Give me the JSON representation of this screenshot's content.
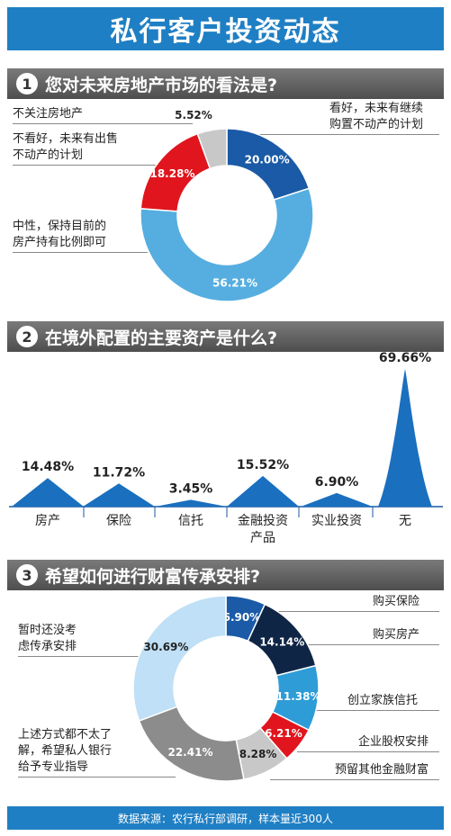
{
  "title": "私行客户投资动态",
  "footer": "数据来源：农行私行部调研，样本量近300人",
  "sections": [
    {
      "num": "1",
      "question": "您对未来房地产市场的看法是?"
    },
    {
      "num": "2",
      "question": "在境外配置的主要资产是什么?"
    },
    {
      "num": "3",
      "question": "希望如何进行财富传承安排?"
    }
  ],
  "colors": {
    "banner": "#1f7fc4",
    "dark_blue": "#1a5aa6",
    "light_blue": "#56aee0",
    "red": "#e0151d",
    "gray": "#c8c8c8",
    "navy": "#0f2546",
    "teal_blue": "#2e9cd6",
    "pale_blue": "#bfe0f6",
    "dark_gray": "#8c8c8c"
  },
  "chart_data": [
    {
      "type": "pie",
      "slices": [
        {
          "label": "看好，未来有继续购置不动产的计划",
          "value": 20.0,
          "value_label": "20.00%",
          "color": "#1a5aa6"
        },
        {
          "label": "中性，保持目前的房产持有比例即可",
          "value": 56.21,
          "value_label": "56.21%",
          "color": "#56aee0"
        },
        {
          "label": "不看好，未来有出售不动产的计划",
          "value": 18.28,
          "value_label": "18.28%",
          "color": "#e0151d"
        },
        {
          "label": "不关注房地产",
          "value": 5.52,
          "value_label": "5.52%",
          "color": "#c8c8c8"
        }
      ],
      "labels_display": {
        "right": "看好，未来有继续",
        "right2": "购置不动产的计划",
        "left_top": "不关注房地产",
        "left_mid1": "不看好，未来有出售",
        "left_mid2": "不动产的计划",
        "left_bot1": "中性，保持目前的",
        "left_bot2": "房产持有比例即可"
      }
    },
    {
      "type": "area",
      "categories": [
        "房产",
        "保险",
        "信托",
        "金融投资产品",
        "实业投资",
        "无"
      ],
      "category_lines": [
        [
          "房产"
        ],
        [
          "保险"
        ],
        [
          "信托"
        ],
        [
          "金融投资",
          "产品"
        ],
        [
          "实业投资"
        ],
        [
          "无"
        ]
      ],
      "values": [
        14.48,
        11.72,
        3.45,
        15.52,
        6.9,
        69.66
      ],
      "value_labels": [
        "14.48%",
        "11.72%",
        "3.45%",
        "15.52%",
        "6.90%",
        "69.66%"
      ],
      "ylim": [
        0,
        70
      ]
    },
    {
      "type": "pie",
      "slices": [
        {
          "label": "购买保险",
          "value": 6.9,
          "value_label": "6.90%",
          "color": "#1a5aa6"
        },
        {
          "label": "购买房产",
          "value": 14.14,
          "value_label": "14.14%",
          "color": "#0f2546"
        },
        {
          "label": "创立家族信托",
          "value": 11.38,
          "value_label": "11.38%",
          "color": "#2e9cd6"
        },
        {
          "label": "企业股权安排",
          "value": 6.21,
          "value_label": "6.21%",
          "color": "#e0151d"
        },
        {
          "label": "预留其他金融财富",
          "value": 8.28,
          "value_label": "8.28%",
          "color": "#c8c8c8"
        },
        {
          "label": "上述方式都不太了解，希望私人银行给予专业指导",
          "value": 22.41,
          "value_label": "22.41%",
          "color": "#8c8c8c"
        },
        {
          "label": "暂时还没考虑传承安排",
          "value": 30.69,
          "value_label": "30.69%",
          "color": "#bfe0f6"
        }
      ],
      "labels_display": {
        "left_top1": "暂时还没考",
        "left_top2": "虑传承安排",
        "left_bot1": "上述方式都不太了",
        "left_bot2": "解，希望私人银行",
        "left_bot3": "给予专业指导"
      }
    }
  ]
}
